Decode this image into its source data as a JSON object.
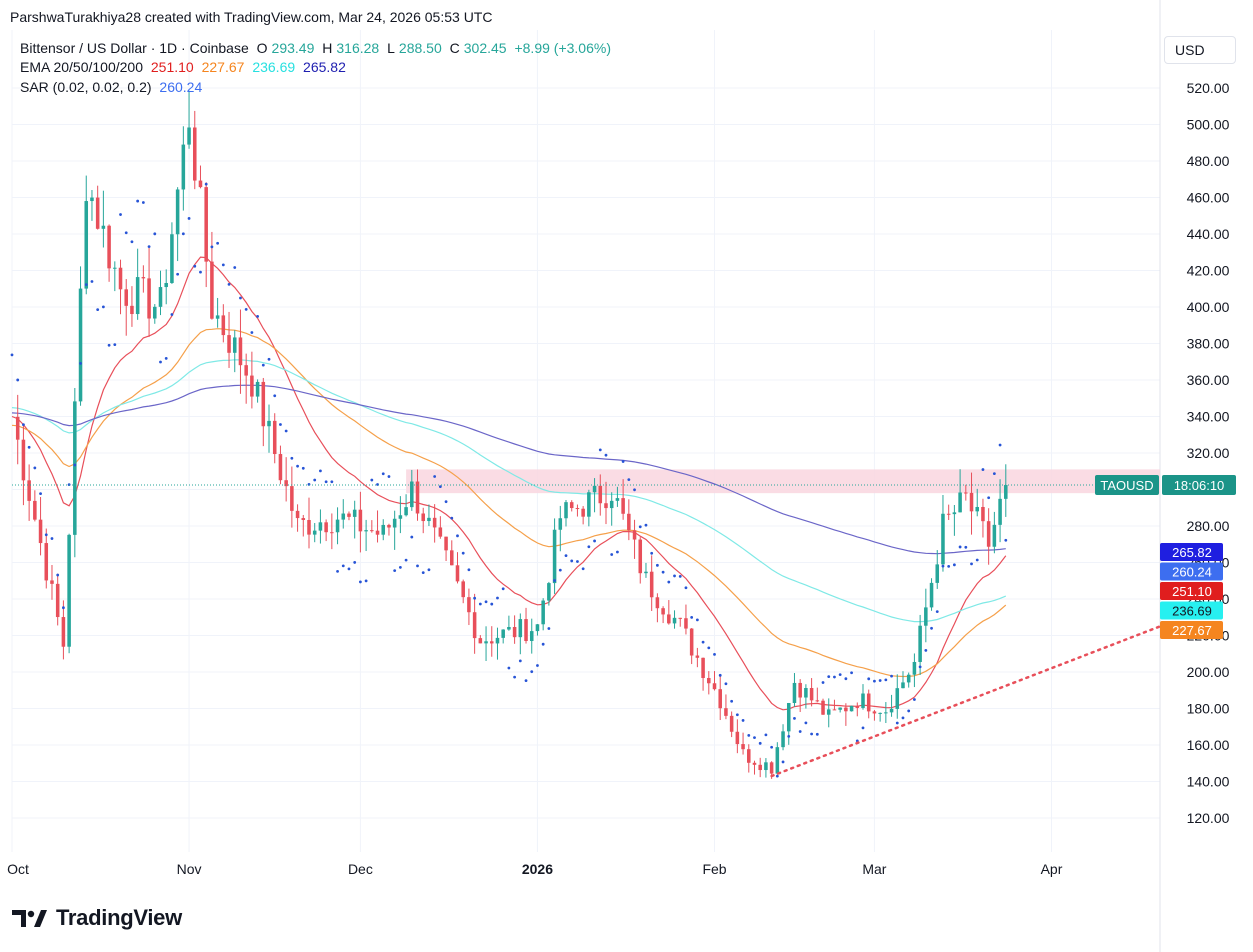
{
  "credit": "ParshwaTurakhiya28 created with TradingView.com, Mar 24, 2026 05:53 UTC",
  "legend": {
    "title": "Bittensor / US Dollar · 1D · Coinbase",
    "o_label": "O",
    "o_value": "293.49",
    "h_label": "H",
    "h_value": "316.28",
    "l_label": "L",
    "l_value": "288.50",
    "c_label": "C",
    "c_value": "302.45",
    "change": "+8.99 (+3.06%)",
    "ema_label": "EMA 20/50/100/200",
    "ema20": "251.10",
    "ema50": "227.67",
    "ema100": "236.69",
    "ema200": "265.82",
    "sar_label": "SAR (0.02, 0.02, 0.2)",
    "sar_value": "260.24"
  },
  "currency": "USD",
  "price_tag": {
    "symbol": "TAOUSD",
    "countdown": "18:06:10"
  },
  "logo_text": "TradingView",
  "colors": {
    "up": "#26a69a",
    "down": "#e84f5a",
    "ema20": "#e84f5a",
    "ema50": "#f5a04a",
    "ema100": "#7fe9e6",
    "ema200": "#6b66c8",
    "sar": "#2754d6",
    "zone": "#f9d6df",
    "trendline": "#e84f5a"
  },
  "chart_data": {
    "type": "candlestick",
    "symbol": "TAOUSD",
    "timeframe": "1D",
    "y_ticks": [
      120,
      140,
      160,
      180,
      200,
      220,
      240,
      260,
      280,
      300,
      320,
      340,
      360,
      380,
      400,
      420,
      440,
      460,
      480,
      500,
      520
    ],
    "ylim": [
      100,
      540
    ],
    "x_ticks": [
      {
        "label": "Oct",
        "date": "2025-10-01",
        "bold": false
      },
      {
        "label": "Nov",
        "date": "2025-11-01",
        "bold": false
      },
      {
        "label": "Dec",
        "date": "2025-12-01",
        "bold": false
      },
      {
        "label": "2026",
        "date": "2026-01-01",
        "bold": true
      },
      {
        "label": "Feb",
        "date": "2026-02-01",
        "bold": false
      },
      {
        "label": "Mar",
        "date": "2026-03-01",
        "bold": false
      },
      {
        "label": "Apr",
        "date": "2026-04-01",
        "bold": false
      }
    ],
    "xlim": [
      "2025-10-01",
      "2026-04-20"
    ],
    "key_points": [
      {
        "date": "2025-10-01",
        "price": 340
      },
      {
        "date": "2025-10-10",
        "price": 215
      },
      {
        "date": "2025-10-14",
        "price": 470
      },
      {
        "date": "2025-10-20",
        "price": 410
      },
      {
        "date": "2025-10-27",
        "price": 400
      },
      {
        "date": "2025-11-01",
        "price": 505
      },
      {
        "date": "2025-11-05",
        "price": 400
      },
      {
        "date": "2025-11-12",
        "price": 360
      },
      {
        "date": "2025-11-20",
        "price": 280
      },
      {
        "date": "2025-11-27",
        "price": 285
      },
      {
        "date": "2025-12-05",
        "price": 275
      },
      {
        "date": "2025-12-10",
        "price": 300
      },
      {
        "date": "2025-12-16",
        "price": 260
      },
      {
        "date": "2025-12-22",
        "price": 218
      },
      {
        "date": "2026-01-01",
        "price": 225
      },
      {
        "date": "2026-01-05",
        "price": 285
      },
      {
        "date": "2026-01-14",
        "price": 300
      },
      {
        "date": "2026-01-20",
        "price": 250
      },
      {
        "date": "2026-01-26",
        "price": 225
      },
      {
        "date": "2026-02-02",
        "price": 185
      },
      {
        "date": "2026-02-06",
        "price": 155
      },
      {
        "date": "2026-02-11",
        "price": 148
      },
      {
        "date": "2026-02-15",
        "price": 195
      },
      {
        "date": "2026-02-21",
        "price": 175
      },
      {
        "date": "2026-02-26",
        "price": 185
      },
      {
        "date": "2026-03-03",
        "price": 180
      },
      {
        "date": "2026-03-08",
        "price": 205
      },
      {
        "date": "2026-03-13",
        "price": 280
      },
      {
        "date": "2026-03-17",
        "price": 295
      },
      {
        "date": "2026-03-21",
        "price": 270
      },
      {
        "date": "2026-03-24",
        "price": 302
      }
    ],
    "resistance_zone": {
      "from_date": "2025-12-09",
      "y_top": 311,
      "y_bottom": 298
    },
    "trendline": {
      "from": {
        "date": "2026-02-11",
        "price": 143
      },
      "to": {
        "date": "2026-04-20",
        "price": 225
      }
    },
    "last_price": 302.45,
    "indicators": {
      "ema20": 251.1,
      "ema50": 227.67,
      "ema100": 236.69,
      "ema200": 265.82,
      "sar": 260.24
    },
    "right_labels": [
      {
        "text": "265.82",
        "color": "#1f1fe0"
      },
      {
        "text": "260.24",
        "color": "#3d6ef0"
      },
      {
        "text": "251.10",
        "color": "#e01e1e"
      },
      {
        "text": "236.69",
        "color": "#27f0f0"
      },
      {
        "text": "227.67",
        "color": "#f5851f"
      }
    ]
  }
}
